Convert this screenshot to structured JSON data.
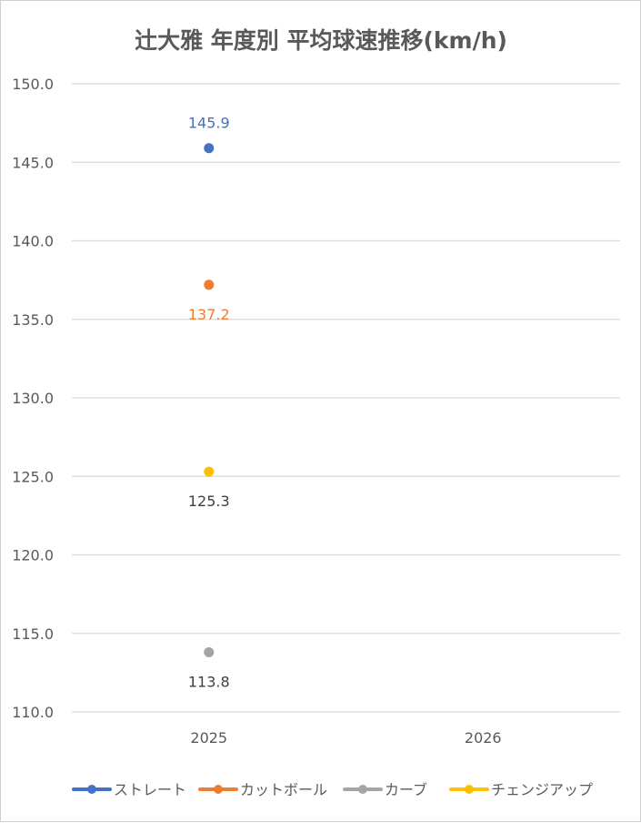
{
  "chart_data": {
    "type": "line",
    "title": "辻大雅 年度別 平均球速推移(km/h)",
    "categories": [
      "2025",
      "2026"
    ],
    "ylim": [
      110,
      150
    ],
    "yticks": [
      "110.0",
      "115.0",
      "120.0",
      "125.0",
      "130.0",
      "135.0",
      "140.0",
      "145.0",
      "150.0"
    ],
    "grid": true,
    "legend_position": "bottom",
    "series": [
      {
        "name": "ストレート",
        "color": "#4472C4",
        "values": [
          145.9,
          null
        ],
        "labels": [
          "145.9",
          ""
        ],
        "label_position": "above",
        "label_color": "#4472C4"
      },
      {
        "name": "カットボール",
        "color": "#ED7D31",
        "values": [
          137.2,
          null
        ],
        "labels": [
          "137.2",
          ""
        ],
        "label_position": "below",
        "label_color": "#ED7D31"
      },
      {
        "name": "カーブ",
        "color": "#A5A5A5",
        "values": [
          113.8,
          null
        ],
        "labels": [
          "113.8",
          ""
        ],
        "label_position": "below",
        "label_color": "#404040"
      },
      {
        "name": "チェンジアップ",
        "color": "#FFC000",
        "values": [
          125.3,
          null
        ],
        "labels": [
          "125.3",
          ""
        ],
        "label_position": "below",
        "label_color": "#404040"
      }
    ]
  }
}
